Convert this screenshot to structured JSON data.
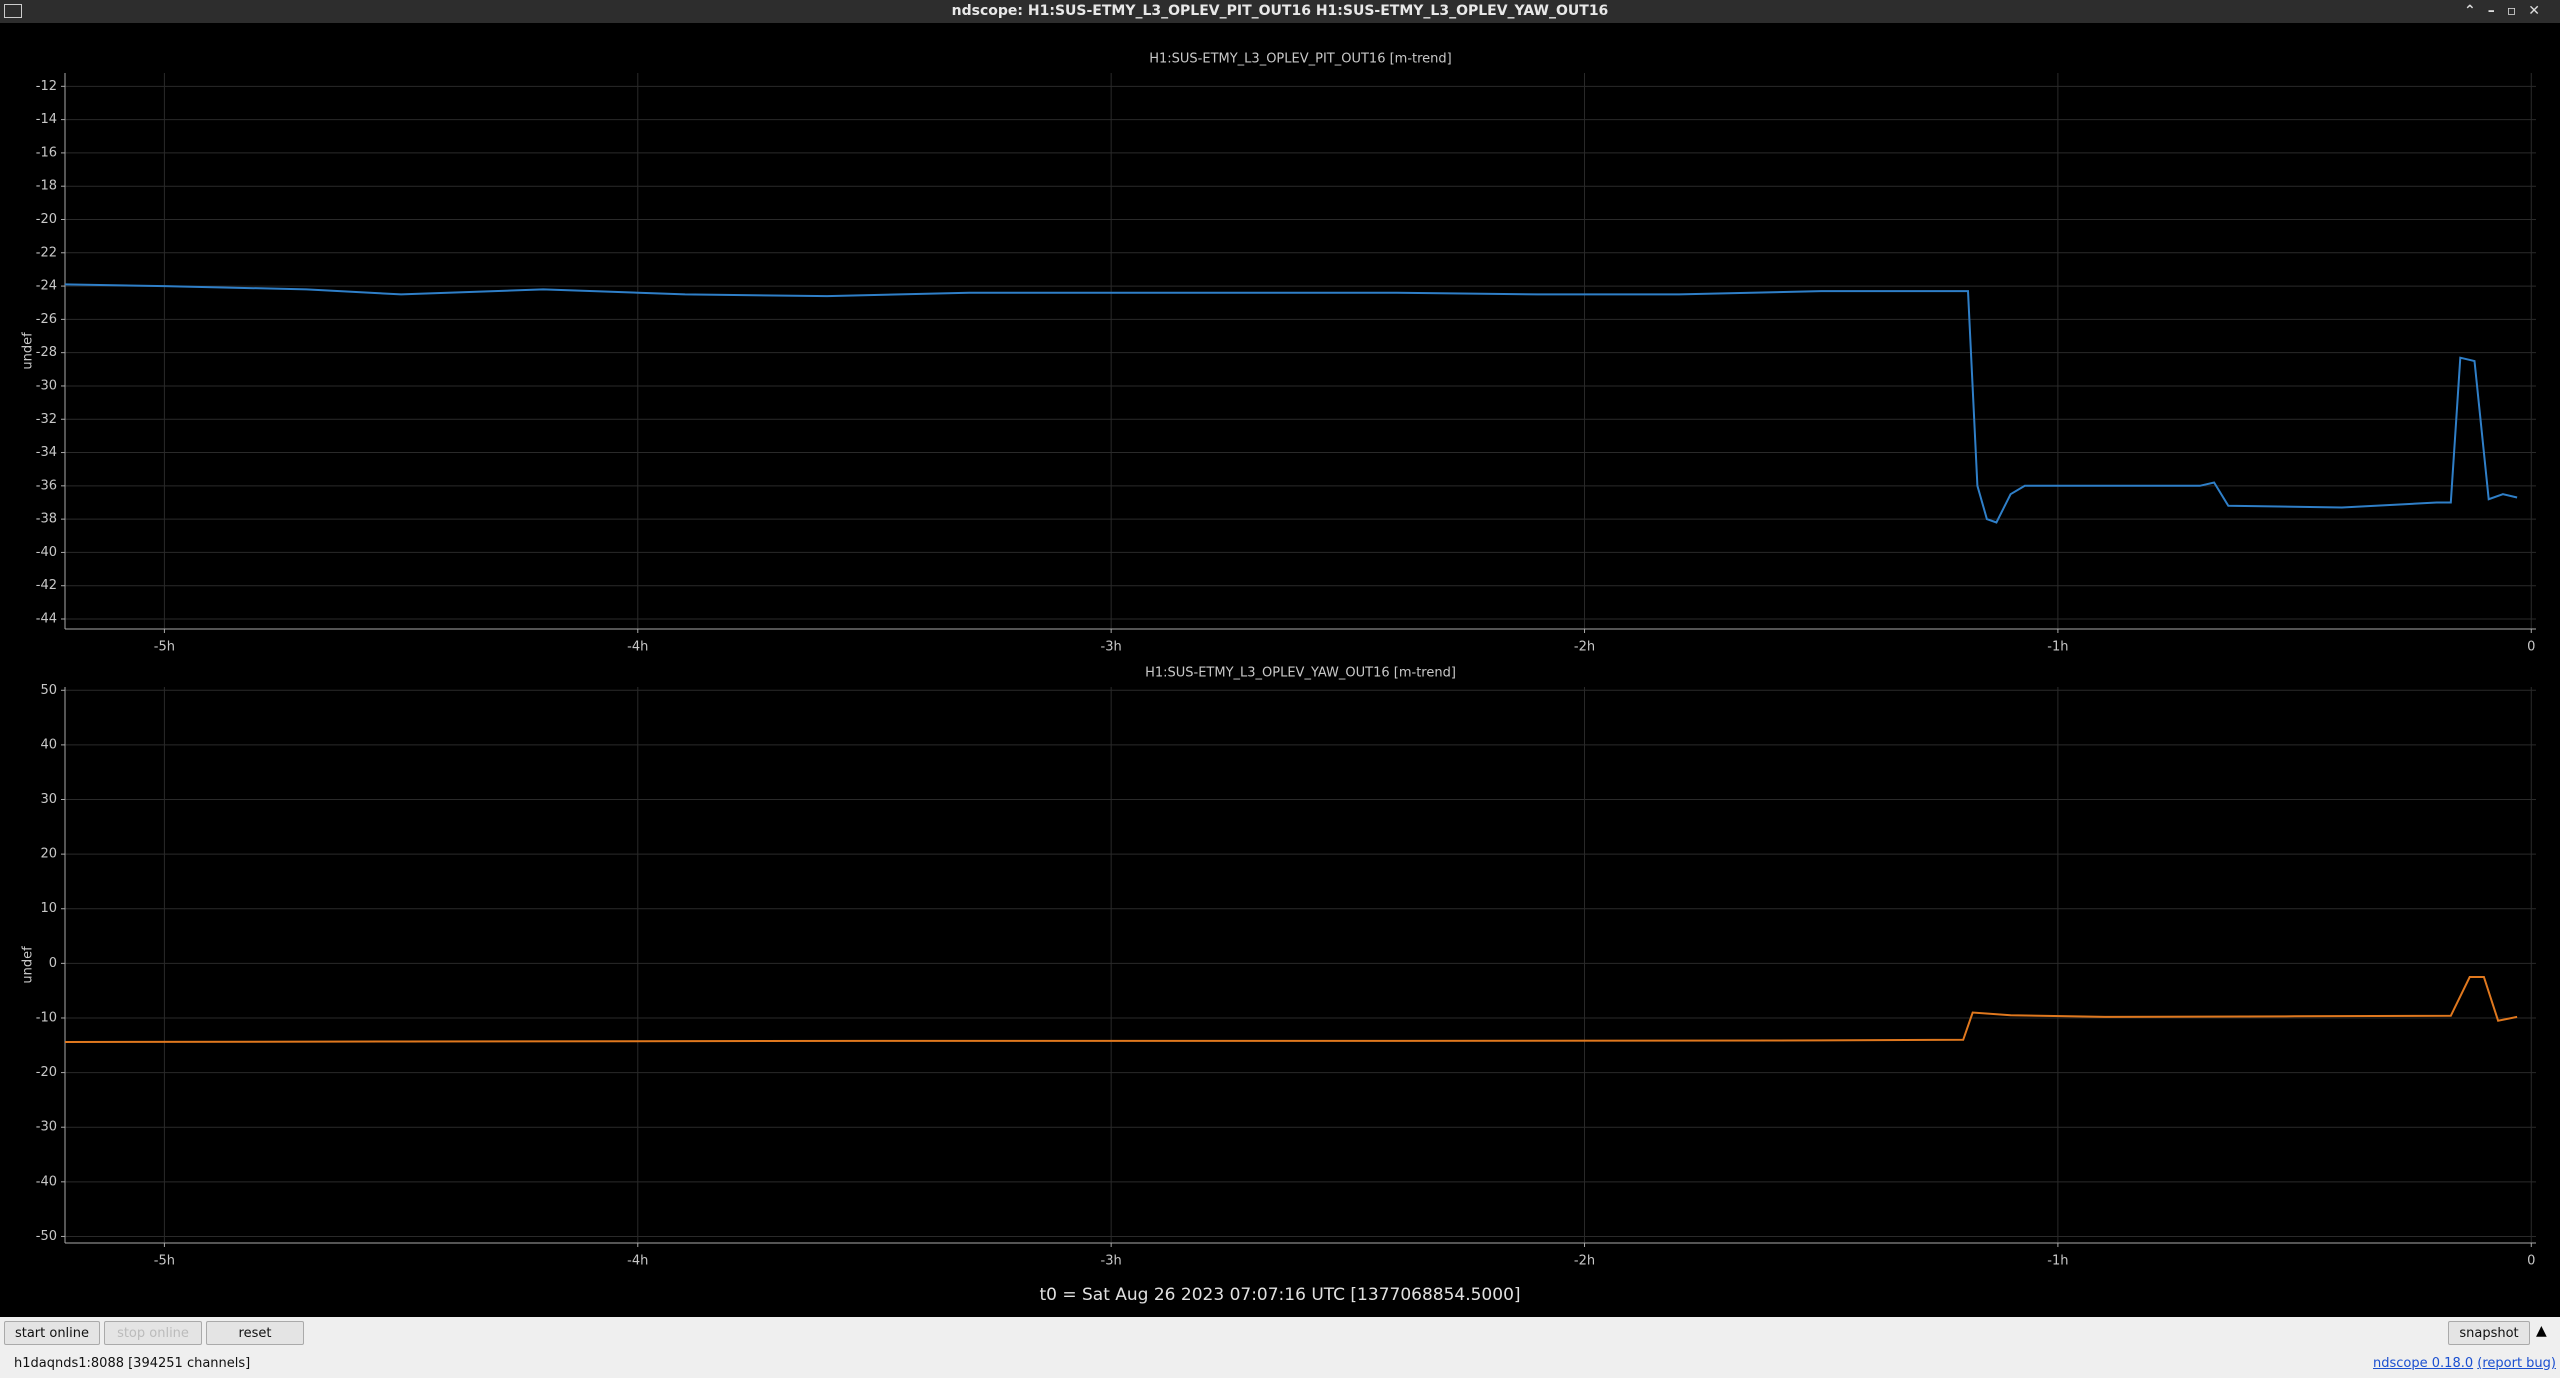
{
  "window": {
    "title": "ndscope: H1:SUS-ETMY_L3_OPLEV_PIT_OUT16 H1:SUS-ETMY_L3_OPLEV_YAW_OUT16"
  },
  "chart_data": [
    {
      "type": "line",
      "title": "H1:SUS-ETMY_L3_OPLEV_PIT_OUT16 [m-trend]",
      "ylabel": "undef",
      "x": [
        -5.21,
        -5.0,
        -4.7,
        -4.5,
        -4.2,
        -3.9,
        -3.6,
        -3.3,
        -3.0,
        -2.7,
        -2.4,
        -2.1,
        -1.8,
        -1.5,
        -1.2,
        -1.19,
        -1.17,
        -1.15,
        -1.13,
        -1.1,
        -1.07,
        -0.9,
        -0.7,
        -0.67,
        -0.64,
        -0.4,
        -0.2,
        -0.17,
        -0.15,
        -0.12,
        -0.09,
        -0.06,
        -0.03
      ],
      "series": [
        {
          "color": "#2f7fc8",
          "values": [
            -23.9,
            -24.0,
            -24.2,
            -24.5,
            -24.2,
            -24.5,
            -24.6,
            -24.4,
            -24.4,
            -24.4,
            -24.4,
            -24.5,
            -24.5,
            -24.3,
            -24.3,
            -24.3,
            -36,
            -38,
            -38.2,
            -36.5,
            -36,
            -36,
            -36,
            -35.8,
            -37.2,
            -37.3,
            -37.0,
            -37.0,
            -28.3,
            -28.5,
            -36.8,
            -36.5,
            -36.7
          ]
        }
      ],
      "xlim": [
        -5.21,
        0.01
      ],
      "ylim": [
        -44.6,
        -11.2
      ],
      "xticks": [
        {
          "value": -5,
          "label": "-5h"
        },
        {
          "value": -4,
          "label": "-4h"
        },
        {
          "value": -3,
          "label": "-3h"
        },
        {
          "value": -2,
          "label": "-2h"
        },
        {
          "value": -1,
          "label": "-1h"
        },
        0
      ],
      "yticks": [
        -12,
        -14,
        -16,
        -18,
        -20,
        -22,
        -24,
        -26,
        -28,
        -30,
        -32,
        -34,
        -36,
        -38,
        -40,
        -42,
        -44
      ],
      "grid": true
    },
    {
      "type": "line",
      "title": "H1:SUS-ETMY_L3_OPLEV_YAW_OUT16 [m-trend]",
      "ylabel": "undef",
      "x": [
        -5.21,
        -4.5,
        -3.5,
        -2.5,
        -1.5,
        -1.2,
        -1.18,
        -1.1,
        -0.9,
        -0.5,
        -0.17,
        -0.13,
        -0.1,
        -0.07,
        -0.03
      ],
      "series": [
        {
          "color": "#e0781e",
          "values": [
            -14.4,
            -14.3,
            -14.2,
            -14.2,
            -14.1,
            -14.0,
            -9.0,
            -9.5,
            -9.8,
            -9.7,
            -9.6,
            -2.5,
            -2.5,
            -10.5,
            -9.8
          ]
        }
      ],
      "xlim": [
        -5.21,
        0.01
      ],
      "ylim": [
        -51.2,
        50.6
      ],
      "xticks": [
        {
          "value": -5,
          "label": "-5h"
        },
        {
          "value": -4,
          "label": "-4h"
        },
        {
          "value": -3,
          "label": "-3h"
        },
        {
          "value": -2,
          "label": "-2h"
        },
        {
          "value": -1,
          "label": "-1h"
        },
        0
      ],
      "yticks": [
        50,
        40,
        30,
        20,
        10,
        0,
        -10,
        -20,
        -30,
        -40,
        -50
      ],
      "grid": true
    }
  ],
  "footer": {
    "t0": "t0 = Sat Aug 26 2023 07:07:16 UTC [1377068854.5000]",
    "buttons": [
      "start online",
      "stop online",
      "reset",
      "snapshot"
    ],
    "status": "h1daqnds1:8088  [394251 channels]",
    "version": "ndscope 0.18.0",
    "report": "(report bug)"
  }
}
